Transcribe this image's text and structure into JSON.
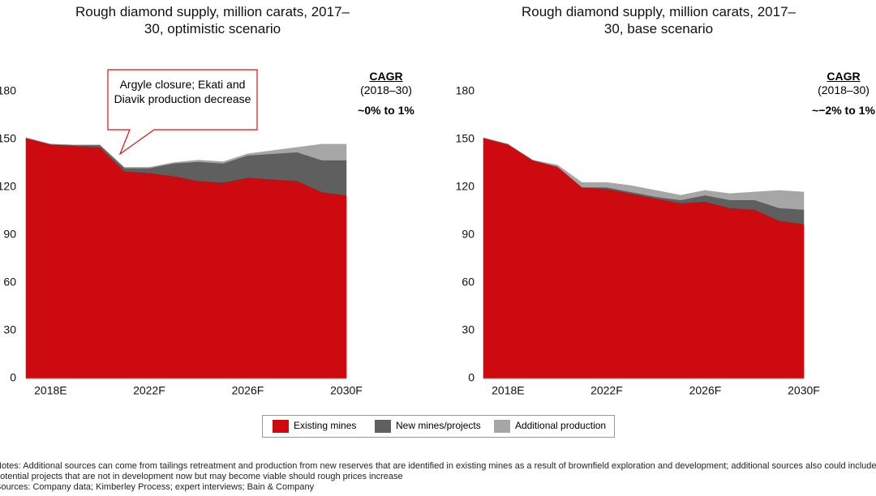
{
  "chart_data": [
    {
      "type": "area",
      "stacked": true,
      "title": "Rough diamond supply, million carats, 2017–30, optimistic scenario",
      "categories": [
        null,
        "2018E",
        null,
        null,
        null,
        "2022F",
        null,
        null,
        null,
        "2026F",
        null,
        null,
        null,
        "2030F"
      ],
      "series": [
        {
          "name": "Existing mines",
          "color": "#cc0a0f",
          "values": [
            151,
            147,
            146,
            145,
            130,
            129,
            127,
            124,
            123,
            126,
            125,
            124,
            117,
            115
          ]
        },
        {
          "name": "New mines/projects",
          "color": "#5f5f5f",
          "values": [
            0,
            0,
            0.5,
            1.5,
            2,
            3,
            8,
            12,
            12,
            14,
            16,
            18,
            20,
            22
          ]
        },
        {
          "name": "Additional production",
          "color": "#a6a6a6",
          "values": [
            0,
            0,
            0,
            0,
            0.5,
            0.5,
            0.5,
            1,
            1,
            1,
            2,
            3,
            10,
            10
          ]
        }
      ],
      "ylim": [
        0,
        180
      ],
      "yticks": [
        0,
        30,
        60,
        90,
        120,
        150,
        180
      ],
      "cagr_title": "CAGR",
      "cagr_period": "(2018–30)",
      "cagr_value": "~0% to 1%",
      "annotation": "Argyle closure; Ekati and Diavik production decrease"
    },
    {
      "type": "area",
      "stacked": true,
      "title": "Rough diamond supply, million carats, 2017–30, base scenario",
      "categories": [
        null,
        "2018E",
        null,
        null,
        null,
        "2022F",
        null,
        null,
        null,
        "2026F",
        null,
        null,
        null,
        "2030F"
      ],
      "series": [
        {
          "name": "Existing mines",
          "color": "#cc0a0f",
          "values": [
            151,
            147,
            137,
            133,
            120,
            119,
            116,
            113,
            110,
            111,
            107,
            106,
            99,
            97
          ]
        },
        {
          "name": "New mines/projects",
          "color": "#5f5f5f",
          "values": [
            0,
            0,
            0,
            0,
            0,
            1,
            1,
            1,
            2,
            4,
            5,
            6,
            8,
            9
          ]
        },
        {
          "name": "Additional production",
          "color": "#a6a6a6",
          "values": [
            0,
            0,
            0,
            1,
            3,
            3,
            4,
            4,
            3,
            3,
            4,
            5,
            11,
            11
          ]
        }
      ],
      "ylim": [
        0,
        180
      ],
      "yticks": [
        0,
        30,
        60,
        90,
        120,
        150,
        180
      ],
      "cagr_title": "CAGR",
      "cagr_period": "(2018–30)",
      "cagr_value": "~−2% to 1%"
    }
  ],
  "notes": "Notes: Additional sources can come from tailings retreatment and production from new reserves that are identified in existing mines as a result of brownfield exploration and development; additional sources also could include potential projects that are not in development now but may become viable should rough prices increase",
  "sources": "Sources: Company data; Kimberley Process; expert interviews; Bain & Company"
}
